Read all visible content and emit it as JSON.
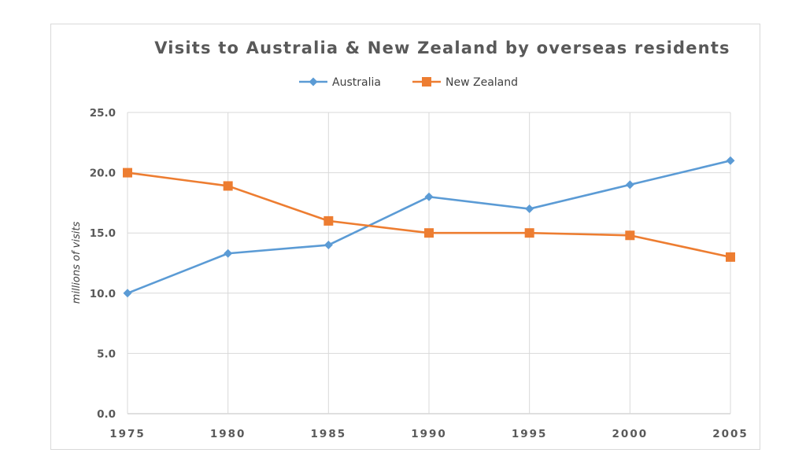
{
  "colors": {
    "australia": "#5b9bd5",
    "new_zealand": "#ed7d31",
    "grid": "#d9d9d9",
    "text": "#595959"
  },
  "chart_data": {
    "type": "line",
    "title": "Visits to Australia & New Zealand by overseas residents",
    "xlabel": "",
    "ylabel": "millions of visits",
    "x": [
      "1975",
      "1980",
      "1985",
      "1990",
      "1995",
      "2000",
      "2005"
    ],
    "y_ticks": [
      "0.0",
      "5.0",
      "10.0",
      "15.0",
      "20.0",
      "25.0"
    ],
    "ylim": [
      0,
      25
    ],
    "grid": true,
    "legend_position": "top-center",
    "series": [
      {
        "name": "Australia",
        "marker": "diamond",
        "values": [
          10.0,
          13.3,
          14.0,
          18.0,
          17.0,
          19.0,
          21.0
        ]
      },
      {
        "name": "New Zealand",
        "marker": "square",
        "values": [
          20.0,
          18.9,
          16.0,
          15.0,
          15.0,
          14.8,
          13.0
        ]
      }
    ]
  }
}
